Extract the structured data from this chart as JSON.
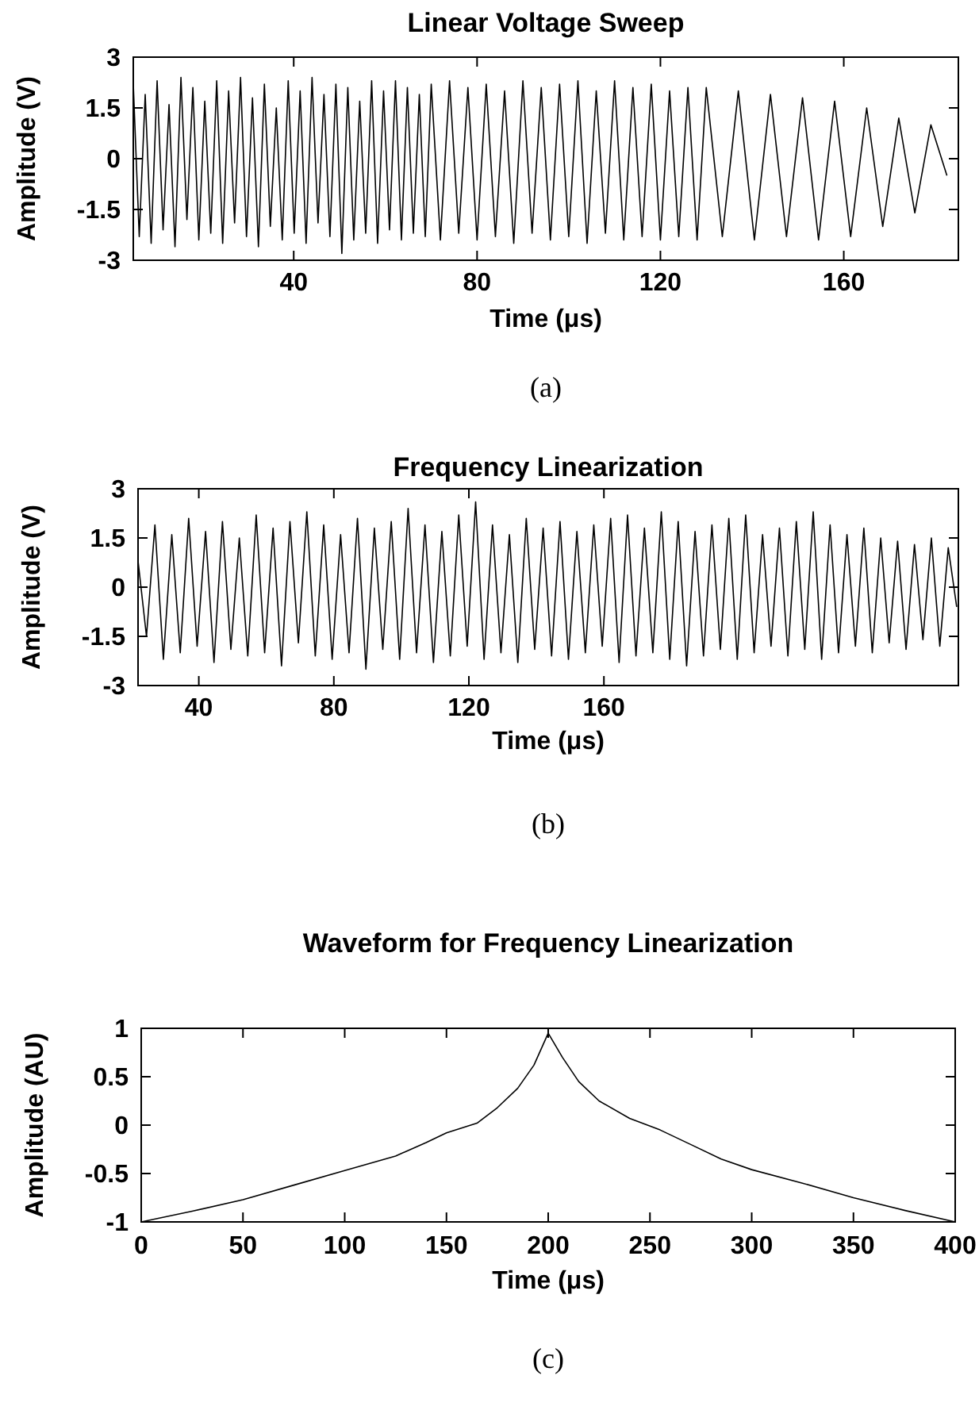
{
  "chart_data": [
    {
      "type": "line",
      "title": "Linear Voltage Sweep",
      "xlabel": "Time (μs)",
      "ylabel": "Amplitude (V)",
      "xlim": [
        5,
        185
      ],
      "ylim": [
        -3,
        3
      ],
      "xticks": [
        40,
        80,
        120,
        160
      ],
      "yticks": [
        -3,
        -1.5,
        0,
        1.5,
        3
      ],
      "annotations": [
        "(a)"
      ],
      "series": [
        {
          "color": "#000000",
          "x": [
            5,
            6.3,
            7.6,
            8.9,
            10.2,
            11.5,
            12.8,
            14.1,
            15.4,
            16.7,
            18,
            19.3,
            20.6,
            21.9,
            23.2,
            24.5,
            25.8,
            27.1,
            28.4,
            29.7,
            31,
            32.3,
            33.6,
            34.9,
            36.2,
            37.5,
            38.8,
            40.1,
            41.4,
            42.7,
            44,
            45.3,
            46.6,
            47.9,
            49.2,
            50.5,
            51.8,
            53.1,
            54.4,
            55.7,
            57,
            58.3,
            59.6,
            60.9,
            62.2,
            63.5,
            64.8,
            66.1,
            67.4,
            68.7,
            70,
            72,
            74,
            76,
            78,
            80,
            82,
            84,
            86,
            88,
            90,
            92,
            94,
            96,
            98,
            100,
            102,
            104,
            106,
            108,
            110,
            112,
            114,
            116,
            118,
            120,
            122,
            124,
            126,
            128,
            130,
            133.5,
            137,
            140.5,
            144,
            147.5,
            151,
            154.5,
            158,
            161.5,
            165,
            168.5,
            172,
            175.5,
            179,
            182.5
          ],
          "values": [
            2.2,
            -2.3,
            1.9,
            -2.5,
            2.3,
            -2.1,
            1.6,
            -2.6,
            2.4,
            -1.8,
            2.1,
            -2.4,
            1.7,
            -2.2,
            2.3,
            -2.5,
            2.0,
            -1.9,
            2.4,
            -2.3,
            1.8,
            -2.6,
            2.2,
            -2.0,
            1.5,
            -2.4,
            2.3,
            -2.2,
            2.0,
            -2.5,
            2.4,
            -1.9,
            1.9,
            -2.3,
            2.2,
            -2.8,
            2.1,
            -2.4,
            1.7,
            -2.2,
            2.3,
            -2.5,
            2.0,
            -2.1,
            2.3,
            -2.4,
            2.1,
            -2.2,
            1.9,
            -2.3,
            2.2,
            -2.4,
            2.3,
            -2.2,
            2.1,
            -2.4,
            2.2,
            -2.3,
            2.0,
            -2.5,
            2.3,
            -2.2,
            2.1,
            -2.4,
            2.2,
            -2.3,
            2.3,
            -2.5,
            2.0,
            -2.2,
            2.3,
            -2.4,
            2.1,
            -2.3,
            2.2,
            -2.4,
            2.0,
            -2.3,
            2.1,
            -2.4,
            2.1,
            -2.3,
            2.0,
            -2.4,
            1.9,
            -2.3,
            1.8,
            -2.4,
            1.7,
            -2.3,
            1.5,
            -2.0,
            1.2,
            -1.6,
            1.0,
            -0.5
          ]
        }
      ]
    },
    {
      "type": "line",
      "title": "Frequency Linearization",
      "xlabel": "Time (μs)",
      "ylabel": "Amplitude (V)",
      "xlim": [
        22,
        265
      ],
      "ylim": [
        -3,
        3
      ],
      "xticks": [
        40,
        80,
        120,
        160
      ],
      "yticks": [
        -3,
        -1.5,
        0,
        1.5,
        3
      ],
      "annotations": [
        "(b)"
      ],
      "series": [
        {
          "color": "#000000",
          "x": [
            22,
            24.5,
            27,
            29.5,
            32,
            34.5,
            37,
            39.5,
            42,
            44.5,
            47,
            49.5,
            52,
            54.5,
            57,
            59.5,
            62,
            64.5,
            67,
            69.5,
            72,
            74.5,
            77,
            79.5,
            82,
            84.5,
            87,
            89.5,
            92,
            94.5,
            97,
            99.5,
            102,
            104.5,
            107,
            109.5,
            112,
            114.5,
            117,
            119.5,
            122,
            124.5,
            127,
            129.5,
            132,
            134.5,
            137,
            139.5,
            142,
            144.5,
            147,
            149.5,
            152,
            154.5,
            157,
            159.5,
            162,
            164.5,
            167,
            169.5,
            172,
            174.5,
            177,
            179.5,
            182,
            184.5,
            187,
            189.5,
            192,
            194.5,
            197,
            199.5,
            202,
            204.5,
            207,
            209.5,
            212,
            214.5,
            217,
            219.5,
            222,
            224.5,
            227,
            229.5,
            232,
            234.5,
            237,
            239.5,
            242,
            244.5,
            247,
            249.5,
            252,
            254.5,
            257,
            259.5,
            262,
            264.5
          ],
          "values": [
            0.8,
            -1.5,
            1.9,
            -2.2,
            1.6,
            -2.0,
            2.1,
            -1.8,
            1.7,
            -2.3,
            2.0,
            -1.9,
            1.5,
            -2.1,
            2.2,
            -2.0,
            1.8,
            -2.4,
            2.0,
            -1.7,
            2.3,
            -2.1,
            1.9,
            -2.2,
            1.6,
            -2.0,
            2.1,
            -2.5,
            1.8,
            -1.9,
            2.0,
            -2.2,
            2.4,
            -2.0,
            1.9,
            -2.3,
            1.7,
            -2.1,
            2.2,
            -1.8,
            2.6,
            -2.2,
            1.9,
            -2.0,
            1.6,
            -2.3,
            2.1,
            -1.9,
            1.8,
            -2.1,
            2.0,
            -2.2,
            1.7,
            -2.0,
            1.9,
            -1.8,
            2.1,
            -2.3,
            2.2,
            -2.1,
            1.8,
            -2.0,
            2.3,
            -2.2,
            2.0,
            -2.4,
            1.7,
            -2.1,
            1.9,
            -1.9,
            2.1,
            -2.2,
            2.2,
            -2.0,
            1.6,
            -1.8,
            1.8,
            -2.1,
            2.0,
            -1.9,
            2.3,
            -2.2,
            1.9,
            -2.0,
            1.6,
            -1.8,
            1.8,
            -2.0,
            1.5,
            -1.7,
            1.4,
            -1.9,
            1.3,
            -1.6,
            1.5,
            -1.8,
            1.2,
            -0.6
          ]
        }
      ]
    },
    {
      "type": "line",
      "title": "Waveform for Frequency Linearization",
      "xlabel": "Time (μs)",
      "ylabel": "Amplitude (AU)",
      "xlim": [
        0,
        400
      ],
      "ylim": [
        -1,
        1
      ],
      "xticks": [
        0,
        50,
        100,
        150,
        200,
        250,
        300,
        350,
        400
      ],
      "yticks": [
        -1,
        -0.5,
        0,
        0.5,
        1
      ],
      "annotations": [
        "(c)"
      ],
      "series": [
        {
          "color": "#000000",
          "x": [
            0,
            25,
            50,
            75,
            100,
            125,
            140,
            150,
            165,
            175,
            185,
            193,
            200,
            207,
            215,
            225,
            240,
            255,
            270,
            285,
            300,
            325,
            350,
            375,
            400
          ],
          "values": [
            -1,
            -0.89,
            -0.77,
            -0.62,
            -0.47,
            -0.32,
            -0.18,
            -0.08,
            0.02,
            0.18,
            0.38,
            0.62,
            0.95,
            0.7,
            0.45,
            0.25,
            0.07,
            -0.05,
            -0.2,
            -0.35,
            -0.46,
            -0.6,
            -0.75,
            -0.88,
            -1
          ]
        }
      ]
    }
  ]
}
